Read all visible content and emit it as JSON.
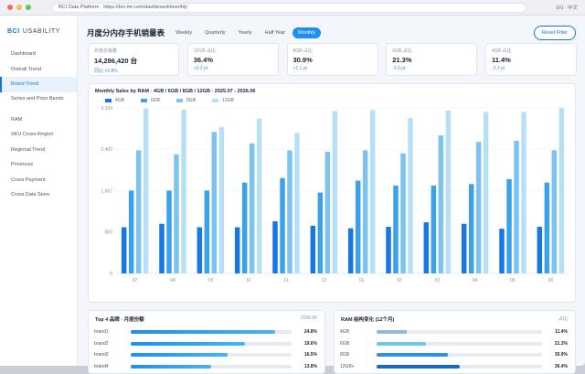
{
  "browser": {
    "url": "BCI Data Platform · https://bci-mr.com/dashboard/monthly",
    "lang": "EN · 中文"
  },
  "sidebar": {
    "logo_brand": "BCI",
    "logo_rest": "USABILITY",
    "items": [
      {
        "label": "Dashboard"
      },
      {
        "label": "Overall Trend"
      },
      {
        "label": "Brand Trend"
      },
      {
        "label": "Series and Price Bands"
      },
      {
        "label": "RAM"
      },
      {
        "label": "SKU Cross-Region"
      },
      {
        "label": "Regional Trend"
      },
      {
        "label": "Provinces"
      },
      {
        "label": "Cross Payment"
      },
      {
        "label": "Cross Data Store"
      }
    ]
  },
  "header": {
    "title": "月度分内存手机销量表",
    "tabs": [
      "Weekly",
      "Quarterly",
      "Yearly",
      "Half Year",
      "Monthly"
    ],
    "reset_label": "Reset Filter"
  },
  "kpis": [
    {
      "title": "月度总销量",
      "value": "14,286,420 台",
      "sub": "同比 +6.8%"
    },
    {
      "title": "12GB 占比",
      "value": "36.4%",
      "sub": "+3.2 pt"
    },
    {
      "title": "8GB 占比",
      "value": "30.9%",
      "sub": "+1.1 pt"
    },
    {
      "title": "6GB 占比",
      "value": "21.3%",
      "sub": "-2.0 pt"
    },
    {
      "title": "4GB 占比",
      "value": "11.4%",
      "sub": "-2.3 pt"
    }
  ],
  "chart_data": {
    "type": "bar",
    "title": "Monthly Sales by RAM · 4GB / 6GB / 8GB / 12GB · 2025.07 - 2026.06",
    "categories": [
      "07",
      "08",
      "09",
      "10",
      "11",
      "12",
      "01",
      "02",
      "03",
      "04",
      "05",
      "06"
    ],
    "yticks": [
      "0",
      "883",
      "1,667",
      "2,483",
      "3,334"
    ],
    "ylim": [
      0,
      3334
    ],
    "series": [
      {
        "name": "4GB",
        "color": "#1778e3",
        "values": [
          930,
          1000,
          930,
          930,
          1050,
          960,
          910,
          940,
          1030,
          1000,
          900,
          940
        ]
      },
      {
        "name": "6GB",
        "color": "#3ba2ea",
        "values": [
          1670,
          1670,
          1670,
          1830,
          1920,
          1630,
          1870,
          1770,
          1770,
          1800,
          1900,
          1830
        ]
      },
      {
        "name": "8GB",
        "color": "#7dc3f0",
        "values": [
          2480,
          2400,
          2850,
          2620,
          2480,
          2450,
          2480,
          2420,
          2780,
          2650,
          2670,
          2480
        ]
      },
      {
        "name": "12GB",
        "color": "#b7e0f8",
        "values": [
          3320,
          3300,
          2950,
          3120,
          2830,
          3270,
          3290,
          3130,
          3280,
          3250,
          3250,
          3330
        ]
      }
    ]
  },
  "top_brands": {
    "title": "Top 4 品牌 · 月度份额",
    "note": "2026.06",
    "rows": [
      {
        "label": "brand1",
        "value": "24.8%",
        "pct": 0.9
      },
      {
        "label": "brand2",
        "value": "19.6%",
        "pct": 0.71
      },
      {
        "label": "brand3",
        "value": "16.5%",
        "pct": 0.6
      },
      {
        "label": "brand4",
        "value": "13.8%",
        "pct": 0.5
      }
    ]
  },
  "ram_mix": {
    "title": "RAM 结构变化 (12个月)",
    "note": "占比",
    "rows": [
      {
        "label": "4GB",
        "value": "11.4%",
        "pct": 0.18,
        "color": "#8fb9df"
      },
      {
        "label": "6GB",
        "value": "21.3%",
        "pct": 0.3,
        "color": "#6fc3ef"
      },
      {
        "label": "8GB",
        "value": "30.9%",
        "pct": 0.43,
        "color": "#2b90e6"
      },
      {
        "label": "12GB+",
        "value": "36.4%",
        "pct": 0.5,
        "color": "#1569c7"
      }
    ]
  }
}
